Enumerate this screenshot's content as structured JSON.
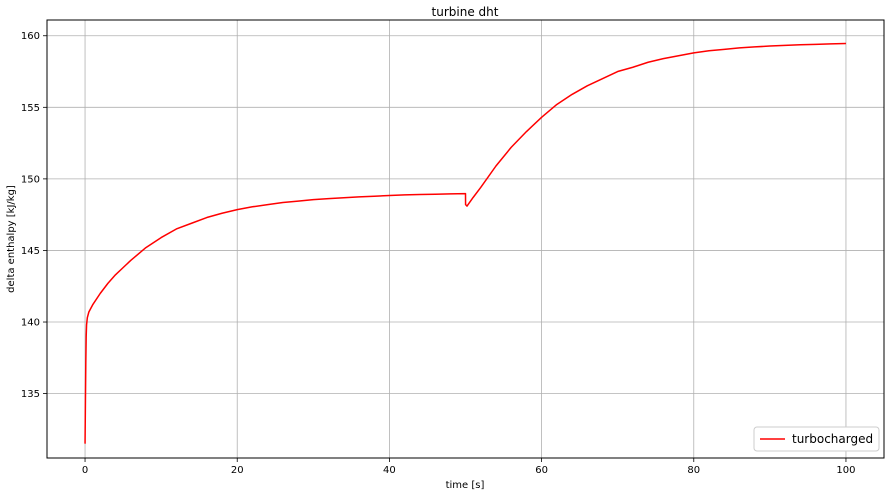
{
  "chart_data": {
    "type": "line",
    "title": "turbine dht",
    "xlabel": "time [s]",
    "ylabel": "delta enthalpy [kJ/kg]",
    "xlim": [
      -5,
      105
    ],
    "ylim": [
      130.5,
      161.1
    ],
    "xticks": [
      0,
      20,
      40,
      60,
      80,
      100
    ],
    "yticks": [
      135,
      140,
      145,
      150,
      155,
      160
    ],
    "grid": true,
    "legend_position": "lower-right",
    "series": [
      {
        "name": "turbocharged",
        "color": "#ff0000",
        "x": [
          0,
          0.05,
          0.1,
          0.15,
          0.2,
          0.3,
          0.5,
          1,
          2,
          3,
          4,
          5,
          6,
          8,
          10,
          12,
          14,
          16,
          18,
          20,
          22,
          24,
          26,
          28,
          30,
          32,
          34,
          36,
          38,
          40,
          42,
          44,
          46,
          48,
          50,
          50.01,
          50.2,
          51,
          52,
          54,
          56,
          58,
          60,
          62,
          64,
          66,
          68,
          70,
          72,
          74,
          76,
          78,
          80,
          82,
          84,
          86,
          88,
          90,
          92,
          94,
          96,
          98,
          100
        ],
        "y": [
          131.5,
          134.5,
          137.2,
          139.0,
          139.8,
          140.3,
          140.7,
          141.2,
          142.0,
          142.7,
          143.3,
          143.8,
          144.3,
          145.2,
          145.9,
          146.5,
          146.9,
          147.3,
          147.6,
          147.85,
          148.05,
          148.2,
          148.35,
          148.45,
          148.55,
          148.62,
          148.68,
          148.74,
          148.79,
          148.84,
          148.88,
          148.91,
          148.93,
          148.95,
          148.97,
          148.2,
          148.1,
          148.7,
          149.4,
          150.9,
          152.2,
          153.3,
          154.3,
          155.2,
          155.9,
          156.5,
          157.0,
          157.5,
          157.8,
          158.15,
          158.4,
          158.6,
          158.8,
          158.95,
          159.05,
          159.15,
          159.22,
          159.28,
          159.33,
          159.37,
          159.4,
          159.43,
          159.46
        ]
      }
    ]
  }
}
